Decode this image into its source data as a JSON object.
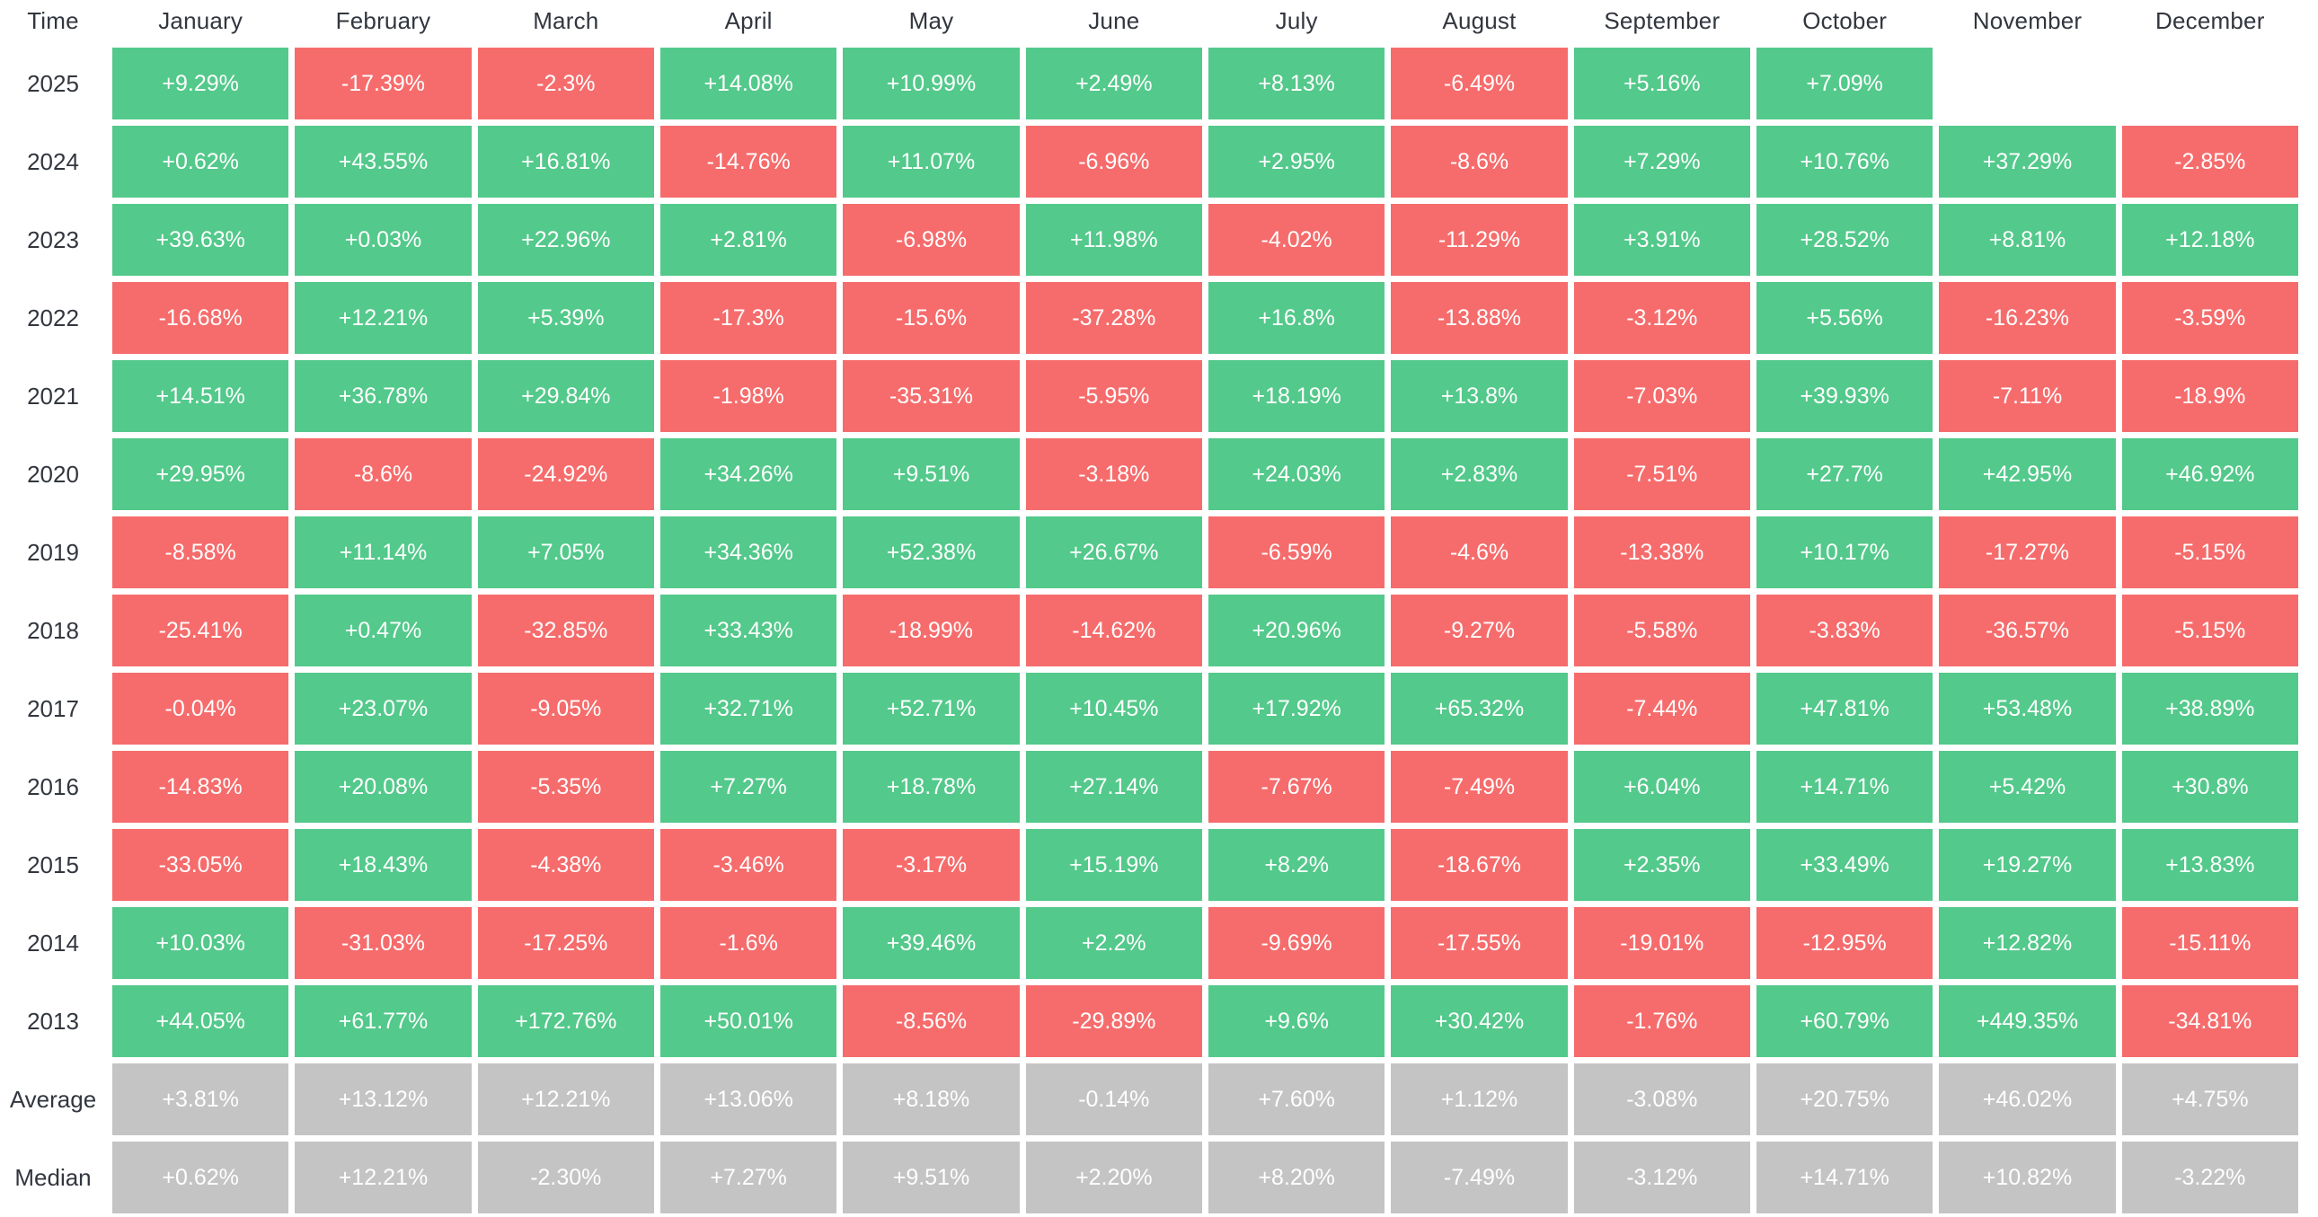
{
  "palette": {
    "positive": "#53c98b",
    "negative": "#f66c6c",
    "summary": "#c4c4c4",
    "header_text": "#32363e",
    "cell_text": "#ffffff"
  },
  "chart_data": {
    "type": "heatmap",
    "title": "",
    "legend_position": "none",
    "grid": false,
    "color_rule": "cells starting with + are green, cells starting with - are red, summary rows (Average/Median) are gray, empty strings are blank cells",
    "columns": [
      "Time",
      "January",
      "February",
      "March",
      "April",
      "May",
      "June",
      "July",
      "August",
      "September",
      "October",
      "November",
      "December"
    ],
    "rows": [
      {
        "label": "2025",
        "type": "year",
        "values": [
          "+9.29%",
          "-17.39%",
          "-2.3%",
          "+14.08%",
          "+10.99%",
          "+2.49%",
          "+8.13%",
          "-6.49%",
          "+5.16%",
          "+7.09%",
          "",
          ""
        ]
      },
      {
        "label": "2024",
        "type": "year",
        "values": [
          "+0.62%",
          "+43.55%",
          "+16.81%",
          "-14.76%",
          "+11.07%",
          "-6.96%",
          "+2.95%",
          "-8.6%",
          "+7.29%",
          "+10.76%",
          "+37.29%",
          "-2.85%"
        ]
      },
      {
        "label": "2023",
        "type": "year",
        "values": [
          "+39.63%",
          "+0.03%",
          "+22.96%",
          "+2.81%",
          "-6.98%",
          "+11.98%",
          "-4.02%",
          "-11.29%",
          "+3.91%",
          "+28.52%",
          "+8.81%",
          "+12.18%"
        ]
      },
      {
        "label": "2022",
        "type": "year",
        "values": [
          "-16.68%",
          "+12.21%",
          "+5.39%",
          "-17.3%",
          "-15.6%",
          "-37.28%",
          "+16.8%",
          "-13.88%",
          "-3.12%",
          "+5.56%",
          "-16.23%",
          "-3.59%"
        ]
      },
      {
        "label": "2021",
        "type": "year",
        "values": [
          "+14.51%",
          "+36.78%",
          "+29.84%",
          "-1.98%",
          "-35.31%",
          "-5.95%",
          "+18.19%",
          "+13.8%",
          "-7.03%",
          "+39.93%",
          "-7.11%",
          "-18.9%"
        ]
      },
      {
        "label": "2020",
        "type": "year",
        "values": [
          "+29.95%",
          "-8.6%",
          "-24.92%",
          "+34.26%",
          "+9.51%",
          "-3.18%",
          "+24.03%",
          "+2.83%",
          "-7.51%",
          "+27.7%",
          "+42.95%",
          "+46.92%"
        ]
      },
      {
        "label": "2019",
        "type": "year",
        "values": [
          "-8.58%",
          "+11.14%",
          "+7.05%",
          "+34.36%",
          "+52.38%",
          "+26.67%",
          "-6.59%",
          "-4.6%",
          "-13.38%",
          "+10.17%",
          "-17.27%",
          "-5.15%"
        ]
      },
      {
        "label": "2018",
        "type": "year",
        "values": [
          "-25.41%",
          "+0.47%",
          "-32.85%",
          "+33.43%",
          "-18.99%",
          "-14.62%",
          "+20.96%",
          "-9.27%",
          "-5.58%",
          "-3.83%",
          "-36.57%",
          "-5.15%"
        ]
      },
      {
        "label": "2017",
        "type": "year",
        "values": [
          "-0.04%",
          "+23.07%",
          "-9.05%",
          "+32.71%",
          "+52.71%",
          "+10.45%",
          "+17.92%",
          "+65.32%",
          "-7.44%",
          "+47.81%",
          "+53.48%",
          "+38.89%"
        ]
      },
      {
        "label": "2016",
        "type": "year",
        "values": [
          "-14.83%",
          "+20.08%",
          "-5.35%",
          "+7.27%",
          "+18.78%",
          "+27.14%",
          "-7.67%",
          "-7.49%",
          "+6.04%",
          "+14.71%",
          "+5.42%",
          "+30.8%"
        ]
      },
      {
        "label": "2015",
        "type": "year",
        "values": [
          "-33.05%",
          "+18.43%",
          "-4.38%",
          "-3.46%",
          "-3.17%",
          "+15.19%",
          "+8.2%",
          "-18.67%",
          "+2.35%",
          "+33.49%",
          "+19.27%",
          "+13.83%"
        ]
      },
      {
        "label": "2014",
        "type": "year",
        "values": [
          "+10.03%",
          "-31.03%",
          "-17.25%",
          "-1.6%",
          "+39.46%",
          "+2.2%",
          "-9.69%",
          "-17.55%",
          "-19.01%",
          "-12.95%",
          "+12.82%",
          "-15.11%"
        ]
      },
      {
        "label": "2013",
        "type": "year",
        "values": [
          "+44.05%",
          "+61.77%",
          "+172.76%",
          "+50.01%",
          "-8.56%",
          "-29.89%",
          "+9.6%",
          "+30.42%",
          "-1.76%",
          "+60.79%",
          "+449.35%",
          "-34.81%"
        ]
      },
      {
        "label": "Average",
        "type": "summary",
        "values": [
          "+3.81%",
          "+13.12%",
          "+12.21%",
          "+13.06%",
          "+8.18%",
          "-0.14%",
          "+7.60%",
          "+1.12%",
          "-3.08%",
          "+20.75%",
          "+46.02%",
          "+4.75%"
        ]
      },
      {
        "label": "Median",
        "type": "summary",
        "values": [
          "+0.62%",
          "+12.21%",
          "-2.30%",
          "+7.27%",
          "+9.51%",
          "+2.20%",
          "+8.20%",
          "-7.49%",
          "-3.12%",
          "+14.71%",
          "+10.82%",
          "-3.22%"
        ]
      }
    ]
  }
}
